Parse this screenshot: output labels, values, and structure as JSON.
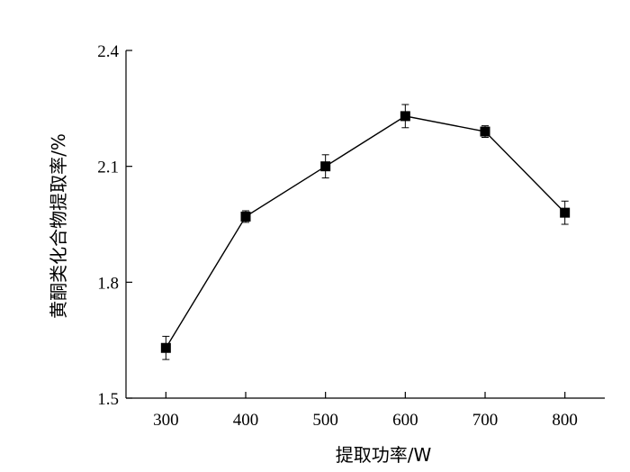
{
  "chart_data": {
    "type": "line",
    "xlabel": "提取功率/W",
    "ylabel": "黄酮类化合物提取率/%",
    "x": [
      300,
      400,
      500,
      600,
      700,
      800
    ],
    "x_ticks": [
      "300",
      "400",
      "500",
      "600",
      "700",
      "800"
    ],
    "xlim": [
      250,
      850
    ],
    "y_ticks": [
      "1.5",
      "1.8",
      "2.1",
      "2.4"
    ],
    "ylim": [
      1.5,
      2.4
    ],
    "series": [
      {
        "values": [
          1.63,
          1.97,
          2.1,
          2.23,
          2.19,
          1.98
        ],
        "errors": [
          0.03,
          0.015,
          0.03,
          0.03,
          0.015,
          0.03
        ]
      }
    ],
    "marker": "square",
    "grid": false,
    "legend": "none"
  }
}
